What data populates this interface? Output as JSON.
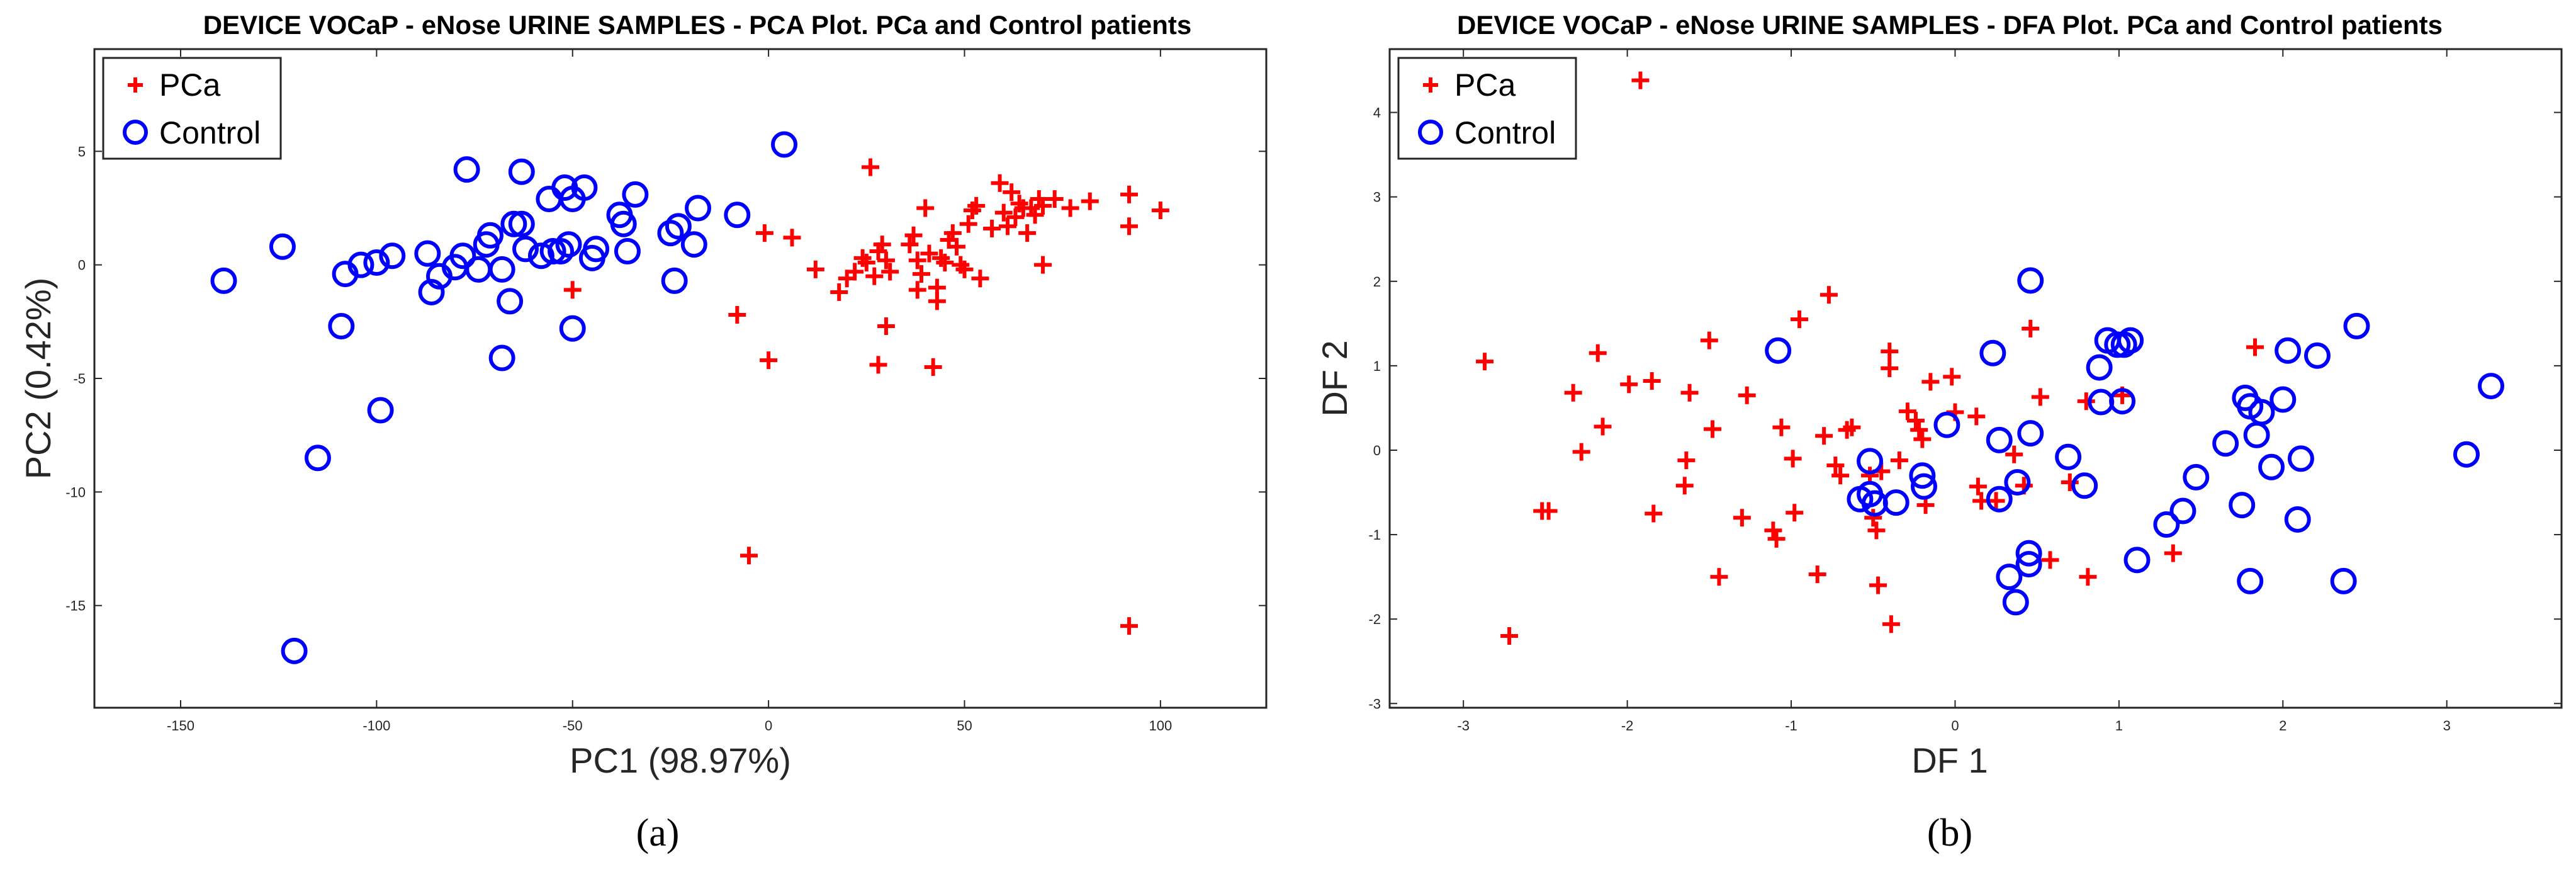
{
  "chart_data": [
    {
      "type": "scatter",
      "title": "DEVICE VOCaP - eNose URINE SAMPLES - PCA Plot. PCa and Control patients",
      "xlabel": "PC1 (98.97%)",
      "ylabel": "PC2 (0.42%)",
      "xlim": [
        -172,
        127
      ],
      "ylim": [
        -19.5,
        9.5
      ],
      "xticks": [
        -150,
        -100,
        -50,
        0,
        50,
        100
      ],
      "yticks": [
        -15,
        -10,
        -5,
        0,
        5
      ],
      "legend": [
        "PCa",
        "Control"
      ],
      "legend_position": "top-left",
      "caption": "(a)",
      "series": [
        {
          "name": "PCa",
          "marker": "plus",
          "color": "#ff0000",
          "points": [
            [
              26,
              4.3
            ],
            [
              -50,
              -1.1
            ],
            [
              -8,
              -2.2
            ],
            [
              -5,
              -12.8
            ],
            [
              0,
              -4.2
            ],
            [
              -1,
              1.4
            ],
            [
              6,
              1.2
            ],
            [
              12,
              -0.2
            ],
            [
              18,
              -1.2
            ],
            [
              20,
              -0.6
            ],
            [
              22,
              -0.3
            ],
            [
              24,
              0.3
            ],
            [
              25,
              0.1
            ],
            [
              27,
              -0.5
            ],
            [
              28,
              0.6
            ],
            [
              29,
              0.9
            ],
            [
              30,
              0.2
            ],
            [
              31,
              -0.3
            ],
            [
              28,
              -4.4
            ],
            [
              30,
              -2.7
            ],
            [
              36,
              0.9
            ],
            [
              37,
              1.3
            ],
            [
              38,
              0.2
            ],
            [
              38,
              -1.1
            ],
            [
              39,
              -0.4
            ],
            [
              40,
              2.5
            ],
            [
              41,
              0.5
            ],
            [
              42,
              -4.5
            ],
            [
              43,
              -1.6
            ],
            [
              43,
              -1.0
            ],
            [
              44,
              0.3
            ],
            [
              45,
              0.1
            ],
            [
              46,
              1.1
            ],
            [
              47,
              1.4
            ],
            [
              48,
              0.8
            ],
            [
              49,
              0.0
            ],
            [
              50,
              -0.2
            ],
            [
              51,
              1.8
            ],
            [
              52,
              2.4
            ],
            [
              53,
              2.6
            ],
            [
              54,
              -0.6
            ],
            [
              57,
              1.6
            ],
            [
              59,
              3.6
            ],
            [
              60,
              2.3
            ],
            [
              61,
              1.7
            ],
            [
              62,
              3.2
            ],
            [
              63,
              2.1
            ],
            [
              64,
              2.7
            ],
            [
              65,
              2.5
            ],
            [
              66,
              1.4
            ],
            [
              67,
              2.5
            ],
            [
              68,
              2.2
            ],
            [
              69,
              2.9
            ],
            [
              70,
              2.6
            ],
            [
              70,
              0.0
            ],
            [
              73,
              2.9
            ],
            [
              77,
              2.5
            ],
            [
              82,
              2.8
            ],
            [
              92,
              3.1
            ],
            [
              92,
              1.7
            ],
            [
              100,
              2.4
            ],
            [
              92,
              -15.9
            ]
          ]
        },
        {
          "name": "Control",
          "marker": "circle",
          "color": "#0000ff",
          "points": [
            [
              -139,
              -0.7
            ],
            [
              -124,
              0.8
            ],
            [
              -121,
              -17.0
            ],
            [
              -115,
              -8.5
            ],
            [
              -109,
              -2.7
            ],
            [
              -108,
              -0.4
            ],
            [
              -104,
              0.0
            ],
            [
              -100,
              0.1
            ],
            [
              -99,
              -6.4
            ],
            [
              -96,
              0.4
            ],
            [
              -87,
              0.5
            ],
            [
              -86,
              -1.2
            ],
            [
              -84,
              -0.5
            ],
            [
              -80,
              -0.1
            ],
            [
              -78,
              0.4
            ],
            [
              -77,
              4.2
            ],
            [
              -74,
              -0.2
            ],
            [
              -72,
              0.9
            ],
            [
              -71,
              1.3
            ],
            [
              -68,
              -0.2
            ],
            [
              -68,
              -4.1
            ],
            [
              -66,
              -1.6
            ],
            [
              -65,
              1.8
            ],
            [
              -63,
              1.8
            ],
            [
              -63,
              4.1
            ],
            [
              -62,
              0.7
            ],
            [
              -58,
              0.4
            ],
            [
              -56,
              2.9
            ],
            [
              -55,
              0.6
            ],
            [
              -53,
              0.6
            ],
            [
              -52,
              3.4
            ],
            [
              -51,
              0.9
            ],
            [
              -50,
              2.9
            ],
            [
              -50,
              -2.8
            ],
            [
              -47,
              3.4
            ],
            [
              -45,
              0.3
            ],
            [
              -44,
              0.7
            ],
            [
              -38,
              2.2
            ],
            [
              -37,
              1.8
            ],
            [
              -36,
              0.6
            ],
            [
              -34,
              3.1
            ],
            [
              -25,
              1.4
            ],
            [
              -24,
              -0.7
            ],
            [
              -23,
              1.7
            ],
            [
              -19,
              0.9
            ],
            [
              -18,
              2.5
            ],
            [
              -8,
              2.2
            ],
            [
              4,
              5.3
            ]
          ]
        }
      ]
    },
    {
      "type": "scatter",
      "title": "DEVICE VOCaP - eNose URINE SAMPLES - DFA Plot. PCa and Control patients",
      "xlabel": "DF 1",
      "ylabel": "DF 2",
      "xlim": [
        -3.45,
        3.7
      ],
      "ylim": [
        -3.05,
        4.75
      ],
      "xticks": [
        -3,
        -2,
        -1,
        0,
        1,
        2,
        3
      ],
      "yticks": [
        -3,
        -2,
        -1,
        0,
        1,
        2,
        3,
        4
      ],
      "legend": [
        "PCa",
        "Control"
      ],
      "legend_position": "top-left",
      "caption": "(b)",
      "series": [
        {
          "name": "PCa",
          "marker": "plus",
          "color": "#ff0000",
          "points": [
            [
              -1.92,
              4.38
            ],
            [
              -2.87,
              1.05
            ],
            [
              -2.72,
              -2.2
            ],
            [
              -2.52,
              -0.72
            ],
            [
              -2.48,
              -0.72
            ],
            [
              -2.33,
              0.68
            ],
            [
              -2.28,
              -0.02
            ],
            [
              -2.18,
              1.15
            ],
            [
              -2.15,
              0.28
            ],
            [
              -1.99,
              0.78
            ],
            [
              -1.85,
              0.82
            ],
            [
              -1.84,
              -0.75
            ],
            [
              -1.62,
              0.68
            ],
            [
              -1.64,
              -0.12
            ],
            [
              -1.65,
              -0.42
            ],
            [
              -1.5,
              1.3
            ],
            [
              -1.48,
              0.25
            ],
            [
              -1.44,
              -1.5
            ],
            [
              -1.3,
              -0.8
            ],
            [
              -1.27,
              0.65
            ],
            [
              -1.11,
              -0.95
            ],
            [
              -1.09,
              -1.05
            ],
            [
              -1.06,
              0.27
            ],
            [
              -0.98,
              -0.74
            ],
            [
              -0.99,
              -0.1
            ],
            [
              -0.95,
              1.55
            ],
            [
              -0.84,
              -1.47
            ],
            [
              -0.8,
              0.17
            ],
            [
              -0.77,
              1.84
            ],
            [
              -0.73,
              -0.18
            ],
            [
              -0.7,
              -0.3
            ],
            [
              -0.66,
              0.24
            ],
            [
              -0.63,
              0.27
            ],
            [
              -0.52,
              -0.3
            ],
            [
              -0.5,
              -0.8
            ],
            [
              -0.48,
              -0.95
            ],
            [
              -0.47,
              -1.6
            ],
            [
              -0.45,
              -0.25
            ],
            [
              -0.4,
              1.17
            ],
            [
              -0.4,
              0.97
            ],
            [
              -0.39,
              -2.06
            ],
            [
              -0.34,
              -0.12
            ],
            [
              -0.29,
              0.46
            ],
            [
              -0.24,
              0.35
            ],
            [
              -0.22,
              0.24
            ],
            [
              -0.2,
              0.13
            ],
            [
              -0.18,
              -0.65
            ],
            [
              -0.15,
              0.81
            ],
            [
              -0.02,
              0.87
            ],
            [
              0.0,
              0.45
            ],
            [
              0.13,
              0.4
            ],
            [
              0.14,
              -0.43
            ],
            [
              0.16,
              -0.6
            ],
            [
              0.25,
              -0.6
            ],
            [
              0.36,
              -0.05
            ],
            [
              0.42,
              -0.42
            ],
            [
              0.46,
              1.44
            ],
            [
              0.52,
              0.63
            ],
            [
              0.58,
              -1.3
            ],
            [
              0.7,
              -0.38
            ],
            [
              0.8,
              0.58
            ],
            [
              0.81,
              -1.5
            ],
            [
              1.02,
              0.65
            ],
            [
              1.33,
              -1.22
            ],
            [
              1.83,
              1.22
            ]
          ]
        },
        {
          "name": "Control",
          "marker": "circle",
          "color": "#0000ff",
          "points": [
            [
              -1.08,
              1.18
            ],
            [
              -0.58,
              -0.58
            ],
            [
              -0.52,
              -0.52
            ],
            [
              -0.52,
              -0.13
            ],
            [
              -0.49,
              -0.63
            ],
            [
              -0.36,
              -0.62
            ],
            [
              -0.2,
              -0.3
            ],
            [
              -0.19,
              -0.43
            ],
            [
              -0.05,
              0.3
            ],
            [
              0.23,
              1.15
            ],
            [
              0.27,
              0.12
            ],
            [
              0.27,
              -0.58
            ],
            [
              0.33,
              -1.5
            ],
            [
              0.37,
              -1.8
            ],
            [
              0.38,
              -0.38
            ],
            [
              0.45,
              -1.22
            ],
            [
              0.45,
              -1.35
            ],
            [
              0.46,
              0.2
            ],
            [
              0.46,
              2.01
            ],
            [
              0.69,
              -0.08
            ],
            [
              0.79,
              -0.42
            ],
            [
              0.88,
              0.98
            ],
            [
              0.89,
              0.57
            ],
            [
              0.93,
              1.3
            ],
            [
              0.99,
              1.25
            ],
            [
              1.02,
              0.58
            ],
            [
              1.03,
              1.25
            ],
            [
              1.07,
              1.3
            ],
            [
              1.11,
              -1.3
            ],
            [
              1.29,
              -0.88
            ],
            [
              1.39,
              -0.72
            ],
            [
              1.47,
              -0.32
            ],
            [
              1.65,
              0.08
            ],
            [
              1.75,
              -0.65
            ],
            [
              1.77,
              0.62
            ],
            [
              1.8,
              -1.55
            ],
            [
              1.8,
              0.52
            ],
            [
              1.84,
              0.18
            ],
            [
              1.87,
              0.45
            ],
            [
              1.93,
              -0.2
            ],
            [
              2.0,
              0.6
            ],
            [
              2.03,
              1.18
            ],
            [
              2.09,
              -0.82
            ],
            [
              2.11,
              -0.1
            ],
            [
              2.21,
              1.12
            ],
            [
              2.37,
              -1.55
            ],
            [
              2.45,
              1.47
            ],
            [
              3.12,
              -0.05
            ],
            [
              3.27,
              0.76
            ]
          ]
        }
      ]
    }
  ]
}
